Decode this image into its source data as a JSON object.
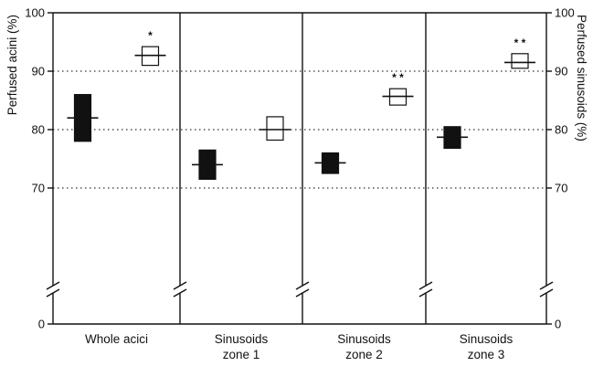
{
  "chart_data": {
    "type": "box",
    "ylabel_left": "Perfused acini (%)",
    "ylabel_right": "Perfused sinusoids (%)",
    "ylim": [
      0,
      100
    ],
    "axis_break_below": 60,
    "yticks": [
      0,
      70,
      80,
      90,
      100
    ],
    "gridlines": [
      70,
      80,
      90
    ],
    "grid": "dotted",
    "categories": [
      [
        "Whole acici"
      ],
      [
        "Sinusoids",
        "zone 1"
      ],
      [
        "Sinusoids",
        "zone 2"
      ],
      [
        "Sinusoids",
        "zone 3"
      ]
    ],
    "series": [
      {
        "fill": "black",
        "boxes": [
          {
            "low": 78,
            "high": 86,
            "mean": 82
          },
          {
            "low": 71.5,
            "high": 76.5,
            "mean": 74
          },
          {
            "low": 72.5,
            "high": 76,
            "mean": 74.3
          },
          {
            "low": 76.8,
            "high": 80.5,
            "mean": 78.7
          }
        ]
      },
      {
        "fill": "white",
        "boxes": [
          {
            "low": 91,
            "high": 94.2,
            "mean": 92.7
          },
          {
            "low": 78.2,
            "high": 82.2,
            "mean": 80
          },
          {
            "low": 84.2,
            "high": 87,
            "mean": 85.7
          },
          {
            "low": 90.5,
            "high": 93,
            "mean": 91.5
          }
        ]
      }
    ],
    "significance": [
      "*",
      "",
      "**",
      "**"
    ],
    "colors": {
      "filled": "#111111",
      "open": "#ffffff",
      "line": "#111111",
      "grid": "#333333"
    }
  }
}
